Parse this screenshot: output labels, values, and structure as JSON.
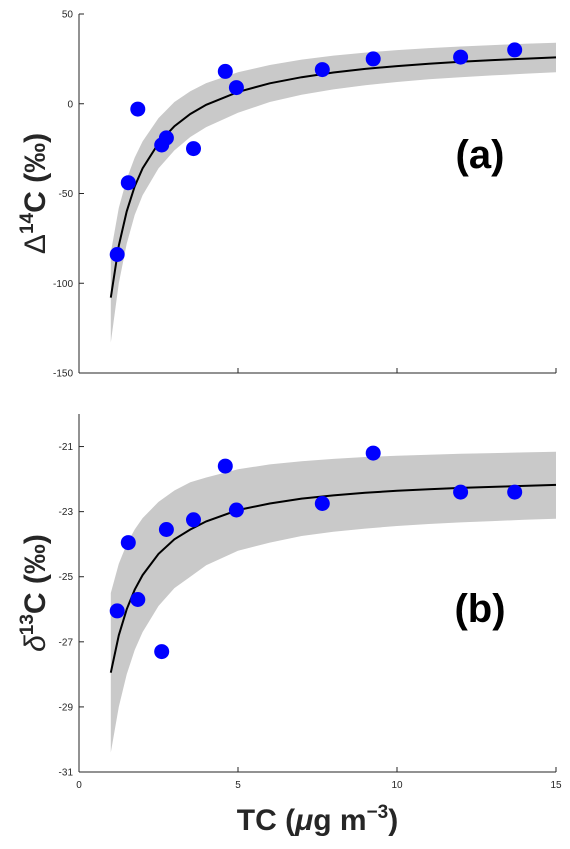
{
  "chart_data": [
    {
      "type": "scatter",
      "panel_label": "(a)",
      "ylabel": "Δ¹⁴C (‰)",
      "ylabel_parts": {
        "symbol": "Δ",
        "sup": "14",
        "rest": "C (‰)"
      },
      "xlabel": "",
      "xlim": [
        0,
        15
      ],
      "ylim": [
        -150,
        50
      ],
      "yticks": [
        -150,
        -100,
        -50,
        0,
        50
      ],
      "xticks": [
        0,
        5,
        10,
        15
      ],
      "xtick_labels": [
        "",
        "",
        "",
        ""
      ],
      "grid": false,
      "series": [
        {
          "kind": "points",
          "color": "#0000ff",
          "x": [
            1.2,
            1.55,
            1.85,
            2.6,
            2.75,
            3.6,
            4.6,
            4.95,
            7.65,
            9.25,
            12.0,
            13.7
          ],
          "y": [
            -84,
            -44,
            -3,
            -23,
            -19,
            -25,
            18,
            9,
            19,
            25,
            26,
            30
          ]
        },
        {
          "kind": "fit",
          "color": "#000000",
          "x": [
            1.0,
            1.25,
            1.5,
            1.75,
            2.0,
            2.5,
            3.0,
            3.5,
            4.0,
            5.0,
            6.0,
            7.0,
            8.0,
            9.0,
            10.0,
            11.0,
            12.0,
            13.0,
            14.0,
            15.0
          ],
          "y": [
            -108,
            -79,
            -60,
            -46,
            -36,
            -22,
            -12.5,
            -5.7,
            -0.6,
            6.6,
            11.4,
            14.8,
            17.4,
            19.4,
            21.0,
            22.3,
            23.4,
            24.3,
            25.1,
            25.8
          ]
        },
        {
          "kind": "band",
          "color": "#c9c9c9",
          "x": [
            1.0,
            1.25,
            1.5,
            1.75,
            2.0,
            2.5,
            3.0,
            3.5,
            4.0,
            5.0,
            6.0,
            7.0,
            8.0,
            9.0,
            10.0,
            11.0,
            12.0,
            13.0,
            14.0,
            15.0
          ],
          "upper": [
            -83,
            -58,
            -42,
            -30,
            -21,
            -8,
            1,
            7,
            11.5,
            17.5,
            21.6,
            24.6,
            26.8,
            28.5,
            29.9,
            31.0,
            31.9,
            32.7,
            33.4,
            34.0
          ],
          "lower": [
            -133,
            -100,
            -78,
            -62,
            -51,
            -36,
            -26,
            -18.5,
            -13,
            -5,
            1,
            5,
            8,
            10.3,
            12.1,
            13.6,
            14.8,
            15.8,
            16.7,
            17.5
          ]
        }
      ]
    },
    {
      "type": "scatter",
      "panel_label": "(b)",
      "ylabel": "δ¹³C (‰)",
      "ylabel_parts": {
        "symbol": "δ",
        "sup": "13",
        "rest": "C (‰)"
      },
      "xlabel": "TC (μg m⁻³)",
      "xlabel_parts": {
        "pre": "TC (",
        "mu": "μ",
        "mid": "g m",
        "sup": "−3",
        "post": ")"
      },
      "xlim": [
        0,
        15
      ],
      "ylim": [
        -31,
        -20
      ],
      "yticks": [
        -31,
        -29,
        -27,
        -25,
        -23,
        -21
      ],
      "xticks": [
        0,
        5,
        10,
        15
      ],
      "xtick_labels": [
        "0",
        "5",
        "10",
        "15"
      ],
      "grid": false,
      "series": [
        {
          "kind": "points",
          "color": "#0000ff",
          "x": [
            1.2,
            1.55,
            1.85,
            2.6,
            2.75,
            3.6,
            4.6,
            4.95,
            7.65,
            9.25,
            12.0,
            13.7
          ],
          "y": [
            -26.05,
            -23.95,
            -25.7,
            -27.3,
            -23.55,
            -23.25,
            -21.6,
            -22.95,
            -22.75,
            -21.2,
            -22.4,
            -22.4
          ]
        },
        {
          "kind": "fit",
          "color": "#000000",
          "x": [
            1.0,
            1.25,
            1.5,
            1.75,
            2.0,
            2.5,
            3.0,
            3.5,
            4.0,
            5.0,
            6.0,
            7.0,
            8.0,
            9.0,
            10.0,
            11.0,
            12.0,
            13.0,
            14.0,
            15.0
          ],
          "y": [
            -27.95,
            -26.8,
            -26.0,
            -25.4,
            -24.95,
            -24.3,
            -23.85,
            -23.55,
            -23.3,
            -22.95,
            -22.75,
            -22.6,
            -22.5,
            -22.42,
            -22.36,
            -22.31,
            -22.27,
            -22.24,
            -22.21,
            -22.18
          ]
        },
        {
          "kind": "band",
          "color": "#c9c9c9",
          "x": [
            1.0,
            1.25,
            1.5,
            1.75,
            2.0,
            2.5,
            3.0,
            3.5,
            4.0,
            5.0,
            6.0,
            7.0,
            8.0,
            9.0,
            10.0,
            11.0,
            12.0,
            13.0,
            14.0,
            15.0
          ],
          "upper": [
            -25.5,
            -24.6,
            -24.0,
            -23.55,
            -23.2,
            -22.7,
            -22.35,
            -22.1,
            -21.95,
            -21.7,
            -21.55,
            -21.45,
            -21.38,
            -21.32,
            -21.28,
            -21.25,
            -21.22,
            -21.2,
            -21.18,
            -21.16
          ],
          "lower": [
            -30.4,
            -29.0,
            -28.0,
            -27.25,
            -26.7,
            -25.9,
            -25.35,
            -25.0,
            -24.65,
            -24.2,
            -23.95,
            -23.75,
            -23.62,
            -23.52,
            -23.44,
            -23.38,
            -23.33,
            -23.29,
            -23.25,
            -23.22
          ]
        }
      ]
    }
  ]
}
